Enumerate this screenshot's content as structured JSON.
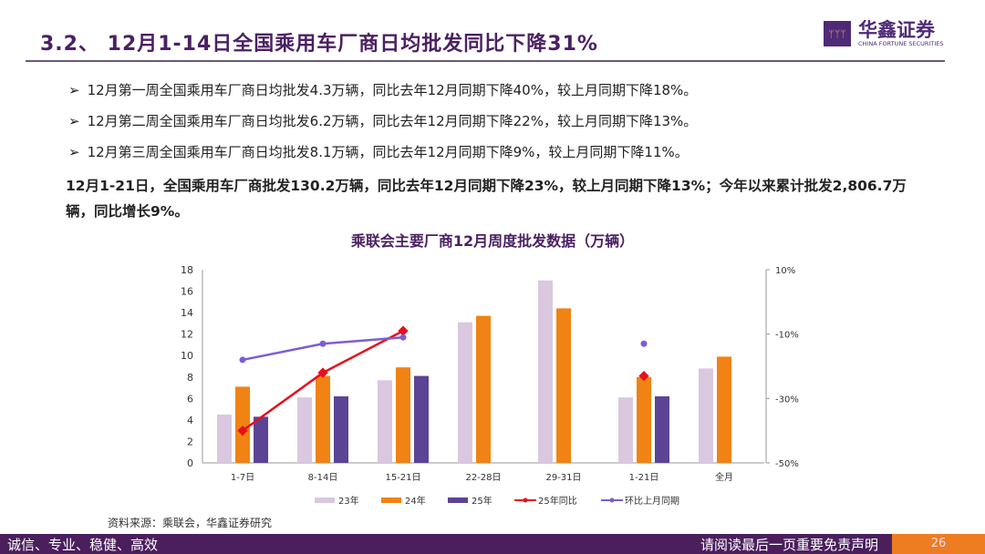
{
  "header": {
    "title": "3.2、  12月1-14日全国乘用车厂商日均批发同比下降31%",
    "logo_cn": "华鑫证券",
    "logo_en": "CHINA FORTUNE SECURITIES"
  },
  "bullets": [
    "12月第一周全国乘用车厂商日均批发4.3万辆，同比去年12月同期下降40%，较上月同期下降18%。",
    "12月第二周全国乘用车厂商日均批发6.2万辆，同比去年12月同期下降22%，较上月同期下降13%。",
    "12月第三周全国乘用车厂商日均批发8.1万辆，同比去年12月同期下降9%，较上月同期下降11%。"
  ],
  "bullet_marker": "➢",
  "summary": "12月1-21日，全国乘用车厂商批发130.2万辆，同比去年12月同期下降23%，较上月同期下降13%；今年以来累计批发2,806.7万辆，同比增长9%。",
  "source": "资料来源：乘联会，华鑫证券研究",
  "footer": {
    "motto": "诚信、专业、稳健、高效",
    "disclaimer": "请阅读最后一页重要免责声明",
    "page": "26"
  },
  "chart_data": {
    "type": "bar",
    "title": "乘联会主要厂商12月周度批发数据（万辆）",
    "categories": [
      "1-7日",
      "8-14日",
      "15-21日",
      "22-28日",
      "29-31日",
      "1-21日",
      "全月"
    ],
    "ylim": [
      0,
      18
    ],
    "yticks": [
      "0",
      "2",
      "4",
      "6",
      "8",
      "10",
      "12",
      "14",
      "16",
      "18"
    ],
    "y2lim": [
      -50,
      10
    ],
    "y2ticks": [
      "-50%",
      "-30%",
      "-10%",
      "10%"
    ],
    "series": [
      {
        "name": "23年",
        "type": "bar",
        "color": "#d9c8e0",
        "values": [
          4.5,
          6.1,
          7.7,
          13.1,
          17.0,
          6.1,
          8.8
        ]
      },
      {
        "name": "24年",
        "type": "bar",
        "color": "#f08313",
        "values": [
          7.1,
          8.1,
          8.9,
          13.7,
          14.4,
          8.0,
          9.9
        ]
      },
      {
        "name": "25年",
        "type": "bar",
        "color": "#5b4396",
        "values": [
          4.3,
          6.2,
          8.1,
          null,
          null,
          6.2,
          null
        ]
      },
      {
        "name": "25年同比",
        "type": "line",
        "axis": "right",
        "color": "#e8101b",
        "values": [
          -40,
          -22,
          -9,
          null,
          null,
          -23,
          null
        ]
      },
      {
        "name": "环比上月同期",
        "type": "line",
        "axis": "right",
        "color": "#7b5cd6",
        "values": [
          -18,
          -13,
          -11,
          null,
          null,
          -13,
          null
        ]
      }
    ]
  }
}
